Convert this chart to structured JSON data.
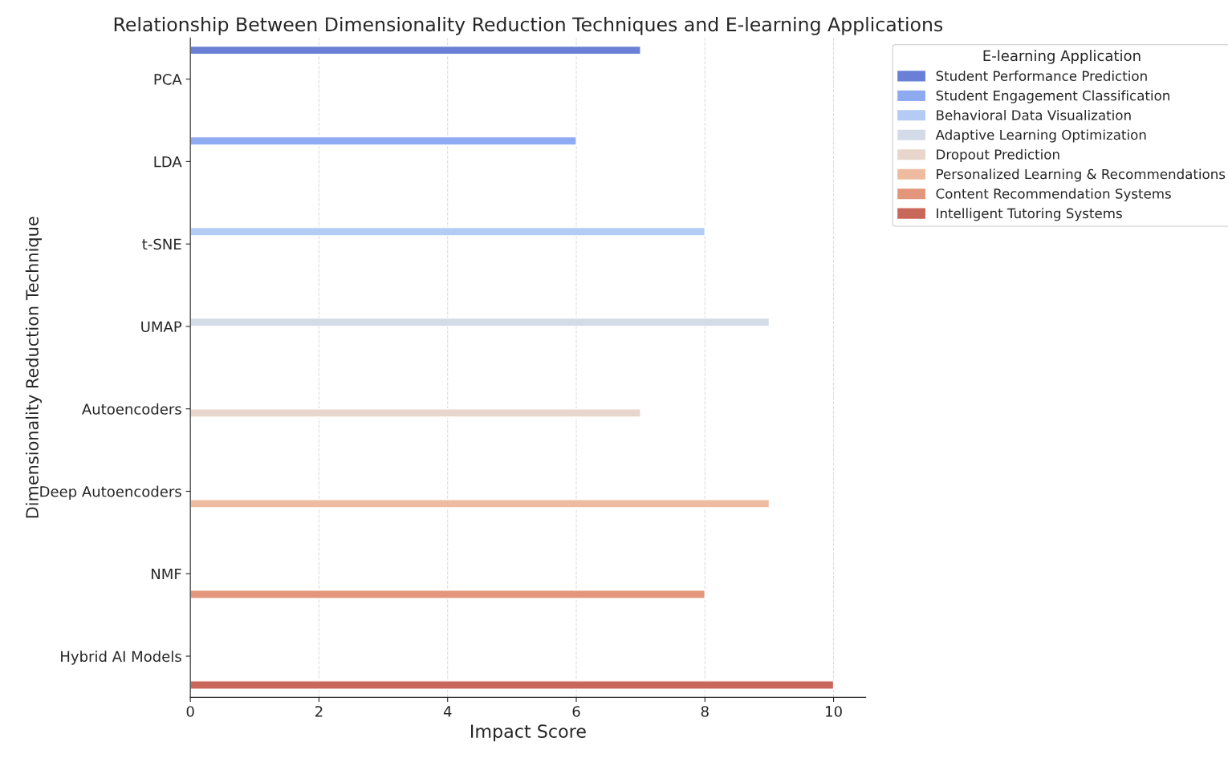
{
  "chart_data": {
    "type": "bar",
    "orientation": "horizontal",
    "title": "Relationship Between Dimensionality Reduction Techniques and E-learning Applications",
    "xlabel": "Impact Score",
    "ylabel": "Dimensionality Reduction Technique",
    "legend_title": "E-learning Application",
    "categories": [
      "PCA",
      "LDA",
      "t-SNE",
      "UMAP",
      "Autoencoders",
      "Deep Autoencoders",
      "NMF",
      "Hybrid AI Models"
    ],
    "series": [
      {
        "name": "Student Performance Prediction",
        "color": "#6a80d6",
        "values": [
          7,
          null,
          null,
          null,
          null,
          null,
          null,
          null
        ]
      },
      {
        "name": "Student Engagement Classification",
        "color": "#8eaaf0",
        "values": [
          null,
          6,
          null,
          null,
          null,
          null,
          null,
          null
        ]
      },
      {
        "name": "Behavioral Data Visualization",
        "color": "#b4ccf5",
        "values": [
          null,
          null,
          8,
          null,
          null,
          null,
          null,
          null
        ]
      },
      {
        "name": "Adaptive Learning Optimization",
        "color": "#d4dbe8",
        "values": [
          null,
          null,
          null,
          9,
          null,
          null,
          null,
          null
        ]
      },
      {
        "name": "Dropout Prediction",
        "color": "#e8d6cc",
        "values": [
          null,
          null,
          null,
          null,
          7,
          null,
          null,
          null
        ]
      },
      {
        "name": "Personalized Learning & Recommendations",
        "color": "#efbba0",
        "values": [
          null,
          null,
          null,
          null,
          null,
          9,
          null,
          null
        ]
      },
      {
        "name": "Content Recommendation Systems",
        "color": "#e3967b",
        "values": [
          null,
          null,
          null,
          null,
          null,
          null,
          8,
          null
        ]
      },
      {
        "name": "Intelligent Tutoring Systems",
        "color": "#c9685a",
        "values": [
          null,
          null,
          null,
          null,
          null,
          null,
          null,
          10
        ]
      }
    ],
    "xlim": [
      0,
      10.5
    ],
    "xticks": [
      0,
      2,
      4,
      6,
      8,
      10
    ],
    "grid": "x",
    "legend": "top right"
  }
}
